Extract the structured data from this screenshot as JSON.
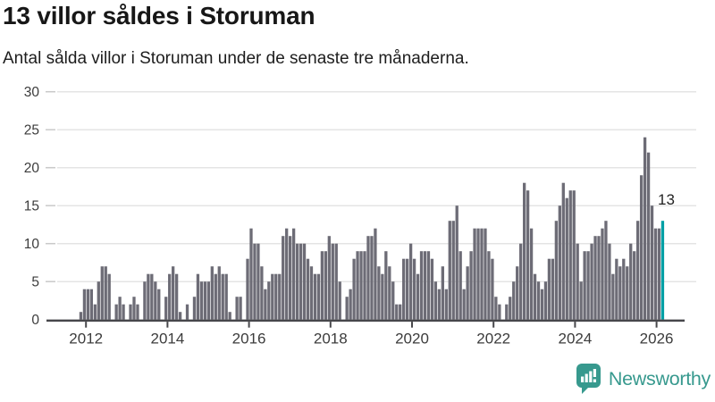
{
  "header": {
    "title": "13 villor såldes i Storuman",
    "subtitle": "Antal sålda villor i Storuman under de senaste tre månaderna."
  },
  "chart_data": {
    "type": "bar",
    "title": "13 villor såldes i Storuman",
    "xlabel": "",
    "ylabel": "",
    "ylim": [
      0,
      30
    ],
    "grid": true,
    "legend": "none",
    "y_ticks": [
      0,
      5,
      10,
      15,
      20,
      25,
      30
    ],
    "x_tick_labels": [
      "2012",
      "2014",
      "2016",
      "2018",
      "2020",
      "2022",
      "2024",
      "2026"
    ],
    "values": [
      1,
      4,
      4,
      4,
      2,
      5,
      7,
      7,
      6,
      0,
      2,
      3,
      2,
      0,
      2,
      3,
      2,
      0,
      5,
      6,
      6,
      5,
      4,
      0,
      3,
      6,
      7,
      6,
      1,
      0,
      2,
      0,
      3,
      6,
      5,
      5,
      5,
      7,
      6,
      7,
      6,
      6,
      1,
      0,
      3,
      3,
      0,
      8,
      12,
      10,
      10,
      7,
      4,
      5,
      6,
      6,
      6,
      11,
      12,
      11,
      12,
      10,
      10,
      10,
      8,
      7,
      6,
      6,
      9,
      9,
      11,
      10,
      10,
      5,
      0,
      3,
      4,
      8,
      9,
      9,
      9,
      11,
      11,
      12,
      7,
      6,
      9,
      7,
      5,
      2,
      2,
      8,
      8,
      10,
      8,
      6,
      9,
      9,
      9,
      8,
      5,
      4,
      7,
      4,
      13,
      13,
      15,
      9,
      4,
      7,
      9,
      12,
      12,
      12,
      12,
      9,
      8,
      3,
      2,
      0,
      2,
      3,
      5,
      7,
      10,
      18,
      17,
      12,
      6,
      5,
      4,
      5,
      8,
      8,
      13,
      15,
      18,
      16,
      17,
      17,
      10,
      5,
      9,
      9,
      10,
      11,
      11,
      12,
      13,
      10,
      6,
      8,
      7,
      8,
      7,
      10,
      9,
      13,
      19,
      24,
      22,
      15,
      12,
      12,
      13
    ],
    "highlight_last": true,
    "annotation": {
      "text": "13"
    },
    "bar_color": "#6d6c76",
    "highlight_color": "#00a0a5",
    "gridline_color": "#e4e4e4",
    "axis_color": "#47474b",
    "tick_label_color": "#3c3c3c"
  },
  "footer": {
    "brand": "Newsworthy",
    "brand_color": "#37998e"
  }
}
